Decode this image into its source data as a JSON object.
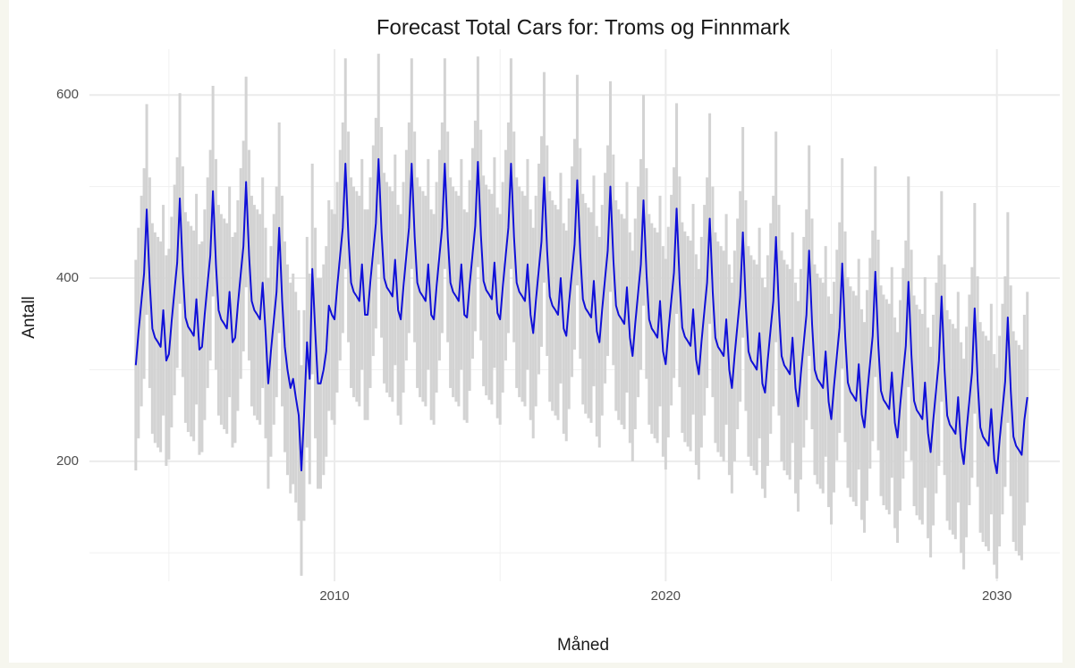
{
  "chart_data": {
    "type": "ribbon-line",
    "title": "Forecast Total Cars for: Troms og Finnmark",
    "x_label": "Måned",
    "y_label": "Antall",
    "xlim": [
      2002.6,
      2031.9
    ],
    "ylim": [
      69,
      650
    ],
    "xticks": [
      2010,
      2020,
      2030
    ],
    "yticks": [
      200,
      400,
      600
    ],
    "x_minor_ticks": [
      2005,
      2015,
      2025
    ],
    "y_minor_ticks": [
      100,
      300,
      500
    ],
    "grid": true,
    "line_color": "#1010d8",
    "band_color": "#d3d3d3",
    "x": [
      2004.0,
      2004.08,
      2004.17,
      2004.25,
      2004.33,
      2004.42,
      2004.5,
      2004.58,
      2004.67,
      2004.75,
      2004.83,
      2004.92,
      2005.0,
      2005.08,
      2005.17,
      2005.25,
      2005.33,
      2005.42,
      2005.5,
      2005.58,
      2005.67,
      2005.75,
      2005.83,
      2005.92,
      2006.0,
      2006.08,
      2006.17,
      2006.25,
      2006.33,
      2006.42,
      2006.5,
      2006.58,
      2006.67,
      2006.75,
      2006.83,
      2006.92,
      2007.0,
      2007.08,
      2007.17,
      2007.25,
      2007.33,
      2007.42,
      2007.5,
      2007.58,
      2007.67,
      2007.75,
      2007.83,
      2007.92,
      2008.0,
      2008.08,
      2008.17,
      2008.25,
      2008.33,
      2008.42,
      2008.5,
      2008.58,
      2008.67,
      2008.75,
      2008.83,
      2008.92,
      2009.0,
      2009.08,
      2009.17,
      2009.25,
      2009.33,
      2009.42,
      2009.5,
      2009.58,
      2009.67,
      2009.75,
      2009.83,
      2009.92,
      2010.0,
      2010.08,
      2010.17,
      2010.25,
      2010.33,
      2010.42,
      2010.5,
      2010.58,
      2010.67,
      2010.75,
      2010.83,
      2010.92,
      2011.0,
      2011.08,
      2011.17,
      2011.25,
      2011.33,
      2011.42,
      2011.5,
      2011.58,
      2011.67,
      2011.75,
      2011.83,
      2011.92,
      2012.0,
      2012.08,
      2012.17,
      2012.25,
      2012.33,
      2012.42,
      2012.5,
      2012.58,
      2012.67,
      2012.75,
      2012.83,
      2012.92,
      2013.0,
      2013.08,
      2013.17,
      2013.25,
      2013.33,
      2013.42,
      2013.5,
      2013.58,
      2013.67,
      2013.75,
      2013.83,
      2013.92,
      2014.0,
      2014.08,
      2014.17,
      2014.25,
      2014.33,
      2014.42,
      2014.5,
      2014.58,
      2014.67,
      2014.75,
      2014.83,
      2014.92,
      2015.0,
      2015.08,
      2015.17,
      2015.25,
      2015.33,
      2015.42,
      2015.5,
      2015.58,
      2015.67,
      2015.75,
      2015.83,
      2015.92,
      2016.0,
      2016.08,
      2016.17,
      2016.25,
      2016.33,
      2016.42,
      2016.5,
      2016.58,
      2016.67,
      2016.75,
      2016.83,
      2016.92,
      2017.0,
      2017.08,
      2017.17,
      2017.25,
      2017.33,
      2017.42,
      2017.5,
      2017.58,
      2017.67,
      2017.75,
      2017.83,
      2017.92,
      2018.0,
      2018.08,
      2018.17,
      2018.25,
      2018.33,
      2018.42,
      2018.5,
      2018.58,
      2018.67,
      2018.75,
      2018.83,
      2018.92,
      2019.0,
      2019.08,
      2019.17,
      2019.25,
      2019.33,
      2019.42,
      2019.5,
      2019.58,
      2019.67,
      2019.75,
      2019.83,
      2019.92,
      2020.0,
      2020.08,
      2020.17,
      2020.25,
      2020.33,
      2020.42,
      2020.5,
      2020.58,
      2020.67,
      2020.75,
      2020.83,
      2020.92,
      2021.0,
      2021.08,
      2021.17,
      2021.25,
      2021.33,
      2021.42,
      2021.5,
      2021.58,
      2021.67,
      2021.75,
      2021.83,
      2021.92,
      2022.0,
      2022.08,
      2022.17,
      2022.25,
      2022.33,
      2022.42,
      2022.5,
      2022.58,
      2022.67,
      2022.75,
      2022.83,
      2022.92,
      2023.0,
      2023.08,
      2023.17,
      2023.25,
      2023.33,
      2023.42,
      2023.5,
      2023.58,
      2023.67,
      2023.75,
      2023.83,
      2023.92,
      2024.0,
      2024.08,
      2024.17,
      2024.25,
      2024.33,
      2024.42,
      2024.5,
      2024.58,
      2024.67,
      2024.75,
      2024.83,
      2024.92,
      2025.0,
      2025.08,
      2025.17,
      2025.25,
      2025.33,
      2025.42,
      2025.5,
      2025.58,
      2025.67,
      2025.75,
      2025.83,
      2025.92,
      2026.0,
      2026.08,
      2026.17,
      2026.25,
      2026.33,
      2026.42,
      2026.5,
      2026.58,
      2026.67,
      2026.75,
      2026.83,
      2026.92,
      2027.0,
      2027.08,
      2027.17,
      2027.25,
      2027.33,
      2027.42,
      2027.5,
      2027.58,
      2027.67,
      2027.75,
      2027.83,
      2027.92,
      2028.0,
      2028.08,
      2028.17,
      2028.25,
      2028.33,
      2028.42,
      2028.5,
      2028.58,
      2028.67,
      2028.75,
      2028.83,
      2028.92,
      2029.0,
      2029.08,
      2029.17,
      2029.25,
      2029.33,
      2029.42,
      2029.5,
      2029.58,
      2029.67,
      2029.75,
      2029.83,
      2029.92,
      2030.0,
      2030.08,
      2030.17,
      2030.25,
      2030.33,
      2030.42,
      2030.5,
      2030.58,
      2030.67,
      2030.75,
      2030.83,
      2030.92
    ],
    "values": [
      305,
      340,
      375,
      405,
      475,
      395,
      345,
      335,
      330,
      325,
      365,
      310,
      317,
      352,
      387,
      417,
      487,
      407,
      357,
      347,
      342,
      337,
      377,
      322,
      325,
      360,
      395,
      425,
      495,
      415,
      365,
      355,
      350,
      345,
      385,
      330,
      335,
      370,
      405,
      435,
      505,
      425,
      375,
      365,
      360,
      355,
      395,
      340,
      285,
      320,
      355,
      385,
      455,
      375,
      325,
      300,
      280,
      290,
      270,
      250,
      190,
      250,
      330,
      290,
      410,
      340,
      285,
      285,
      300,
      320,
      370,
      360,
      355,
      390,
      425,
      455,
      525,
      445,
      395,
      385,
      380,
      375,
      415,
      360,
      360,
      395,
      430,
      460,
      530,
      450,
      400,
      390,
      385,
      380,
      420,
      365,
      355,
      390,
      425,
      455,
      525,
      445,
      395,
      385,
      380,
      375,
      415,
      360,
      355,
      390,
      425,
      455,
      525,
      445,
      395,
      385,
      380,
      375,
      415,
      360,
      357,
      392,
      427,
      457,
      527,
      447,
      397,
      387,
      382,
      377,
      417,
      362,
      355,
      390,
      425,
      455,
      525,
      445,
      395,
      385,
      380,
      375,
      415,
      360,
      340,
      375,
      410,
      440,
      510,
      430,
      380,
      370,
      365,
      360,
      400,
      345,
      337,
      372,
      407,
      437,
      507,
      427,
      377,
      367,
      362,
      357,
      397,
      342,
      330,
      365,
      400,
      430,
      500,
      420,
      370,
      360,
      355,
      350,
      390,
      335,
      315,
      350,
      385,
      415,
      485,
      405,
      355,
      345,
      340,
      335,
      375,
      320,
      306,
      341,
      376,
      406,
      476,
      396,
      346,
      336,
      331,
      326,
      366,
      311,
      295,
      330,
      365,
      395,
      465,
      385,
      335,
      325,
      320,
      315,
      355,
      300,
      280,
      315,
      350,
      380,
      450,
      370,
      320,
      310,
      305,
      300,
      340,
      285,
      275,
      310,
      345,
      375,
      445,
      365,
      315,
      305,
      300,
      295,
      335,
      280,
      260,
      295,
      330,
      360,
      430,
      350,
      300,
      290,
      285,
      280,
      320,
      265,
      246,
      281,
      316,
      346,
      416,
      336,
      286,
      276,
      271,
      266,
      306,
      251,
      237,
      272,
      307,
      337,
      407,
      327,
      277,
      267,
      262,
      257,
      297,
      242,
      226,
      261,
      296,
      326,
      396,
      316,
      266,
      256,
      251,
      246,
      286,
      231,
      210,
      245,
      280,
      310,
      380,
      300,
      250,
      240,
      235,
      230,
      270,
      215,
      197,
      232,
      267,
      297,
      367,
      287,
      237,
      227,
      222,
      217,
      257,
      202,
      187,
      222,
      257,
      287,
      357,
      277,
      227,
      217,
      212,
      207,
      245,
      270
    ],
    "lower": [
      190,
      225,
      260,
      290,
      360,
      280,
      230,
      220,
      215,
      210,
      250,
      195,
      202,
      237,
      272,
      302,
      372,
      292,
      242,
      232,
      227,
      222,
      262,
      207,
      210,
      245,
      280,
      310,
      380,
      300,
      250,
      240,
      235,
      230,
      270,
      215,
      220,
      255,
      290,
      320,
      390,
      310,
      260,
      250,
      245,
      240,
      280,
      225,
      170,
      205,
      240,
      270,
      340,
      260,
      210,
      185,
      165,
      175,
      155,
      135,
      75,
      135,
      215,
      175,
      295,
      225,
      170,
      170,
      185,
      205,
      255,
      245,
      240,
      275,
      310,
      340,
      410,
      330,
      280,
      270,
      265,
      260,
      300,
      245,
      245,
      280,
      315,
      345,
      415,
      335,
      285,
      275,
      270,
      265,
      305,
      250,
      240,
      275,
      310,
      340,
      410,
      330,
      280,
      270,
      265,
      260,
      300,
      245,
      240,
      275,
      310,
      340,
      410,
      330,
      280,
      270,
      265,
      260,
      300,
      245,
      242,
      277,
      312,
      342,
      412,
      332,
      282,
      272,
      267,
      262,
      302,
      247,
      240,
      275,
      310,
      340,
      410,
      330,
      280,
      270,
      265,
      260,
      300,
      245,
      225,
      260,
      295,
      325,
      395,
      315,
      265,
      255,
      250,
      245,
      285,
      230,
      222,
      257,
      292,
      322,
      392,
      312,
      262,
      252,
      247,
      242,
      282,
      227,
      215,
      250,
      285,
      315,
      385,
      305,
      255,
      245,
      240,
      235,
      275,
      220,
      200,
      235,
      270,
      300,
      370,
      290,
      240,
      230,
      225,
      220,
      260,
      205,
      191,
      226,
      261,
      291,
      361,
      281,
      231,
      221,
      216,
      211,
      251,
      196,
      180,
      215,
      250,
      280,
      350,
      270,
      220,
      210,
      205,
      200,
      240,
      185,
      165,
      200,
      235,
      265,
      335,
      255,
      205,
      195,
      190,
      185,
      225,
      170,
      160,
      195,
      230,
      260,
      330,
      250,
      200,
      190,
      185,
      180,
      220,
      165,
      145,
      180,
      215,
      245,
      315,
      235,
      185,
      175,
      170,
      165,
      205,
      150,
      131,
      166,
      201,
      231,
      301,
      221,
      171,
      161,
      156,
      151,
      191,
      136,
      122,
      157,
      192,
      222,
      292,
      212,
      162,
      152,
      147,
      142,
      182,
      127,
      111,
      146,
      181,
      211,
      281,
      201,
      151,
      141,
      136,
      131,
      171,
      116,
      95,
      130,
      165,
      195,
      265,
      185,
      135,
      125,
      120,
      115,
      155,
      100,
      82,
      117,
      152,
      182,
      252,
      172,
      122,
      112,
      107,
      102,
      142,
      87,
      72,
      107,
      142,
      172,
      242,
      162,
      112,
      102,
      97,
      92,
      130,
      155
    ],
    "upper": [
      420,
      455,
      490,
      520,
      590,
      510,
      460,
      450,
      445,
      440,
      480,
      425,
      432,
      467,
      502,
      532,
      602,
      522,
      472,
      462,
      457,
      452,
      492,
      437,
      440,
      475,
      510,
      540,
      610,
      530,
      480,
      470,
      465,
      460,
      500,
      445,
      450,
      485,
      520,
      550,
      620,
      540,
      490,
      480,
      475,
      470,
      510,
      455,
      400,
      435,
      470,
      500,
      570,
      490,
      440,
      415,
      395,
      405,
      385,
      365,
      305,
      365,
      445,
      405,
      525,
      455,
      400,
      400,
      415,
      435,
      485,
      475,
      470,
      505,
      540,
      570,
      640,
      560,
      510,
      500,
      495,
      490,
      530,
      475,
      475,
      510,
      545,
      575,
      645,
      565,
      515,
      505,
      500,
      495,
      535,
      480,
      470,
      505,
      540,
      570,
      640,
      560,
      510,
      500,
      495,
      490,
      530,
      475,
      470,
      505,
      540,
      570,
      640,
      560,
      510,
      500,
      495,
      490,
      530,
      475,
      472,
      507,
      542,
      572,
      642,
      562,
      512,
      502,
      497,
      492,
      532,
      477,
      470,
      505,
      540,
      570,
      640,
      560,
      510,
      500,
      495,
      490,
      530,
      475,
      455,
      490,
      525,
      555,
      625,
      545,
      495,
      485,
      480,
      475,
      515,
      460,
      452,
      487,
      522,
      552,
      622,
      542,
      492,
      482,
      477,
      472,
      512,
      457,
      445,
      480,
      515,
      545,
      615,
      535,
      485,
      475,
      470,
      465,
      505,
      450,
      430,
      465,
      500,
      530,
      600,
      520,
      470,
      460,
      455,
      450,
      490,
      435,
      421,
      456,
      491,
      521,
      591,
      511,
      461,
      451,
      446,
      441,
      481,
      426,
      410,
      445,
      480,
      510,
      580,
      500,
      450,
      440,
      435,
      430,
      470,
      415,
      395,
      430,
      465,
      495,
      565,
      485,
      435,
      425,
      420,
      415,
      455,
      400,
      390,
      425,
      460,
      490,
      560,
      480,
      430,
      420,
      415,
      410,
      450,
      395,
      375,
      410,
      445,
      475,
      545,
      465,
      415,
      405,
      400,
      395,
      435,
      380,
      361,
      396,
      431,
      461,
      531,
      451,
      401,
      391,
      386,
      381,
      421,
      366,
      352,
      387,
      422,
      452,
      522,
      442,
      392,
      382,
      377,
      372,
      412,
      357,
      341,
      376,
      411,
      441,
      511,
      431,
      381,
      371,
      366,
      361,
      401,
      346,
      325,
      360,
      395,
      425,
      495,
      415,
      365,
      355,
      350,
      345,
      385,
      330,
      312,
      347,
      382,
      412,
      482,
      402,
      352,
      342,
      337,
      332,
      372,
      317,
      302,
      337,
      372,
      402,
      472,
      392,
      342,
      332,
      327,
      322,
      360,
      385
    ]
  }
}
